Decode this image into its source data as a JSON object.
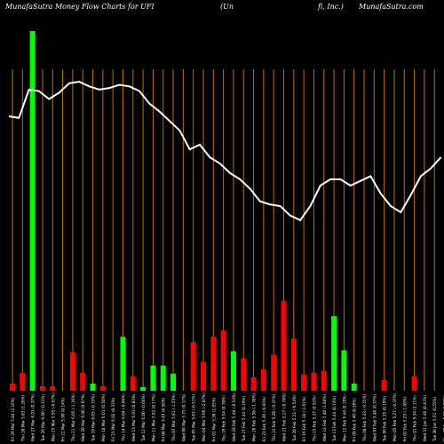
{
  "header": {
    "left": "MunafaSutra  Money Flow  Charts for UFI",
    "center_a": "(Un",
    "center_b": "fi,  Inc.)",
    "right": "MunafaSutra.com"
  },
  "chart_data": {
    "type": "bar",
    "categories": [
      "Fri 29 Mar",
      "Thu 28 Mar",
      "Wed 27 Mar",
      "Tue 26 Mar",
      "Mon 25 Mar",
      "Fri 22 Mar",
      "Thu 21 Mar",
      "Wed 20 Mar",
      "Tue 19 Mar",
      "Mon 18 Mar",
      "Fri 15 Mar",
      "Thu 14 Mar",
      "Wed 13 Mar",
      "Tue 12 Mar",
      "Mon 11 Mar",
      "Fri 08 Mar",
      "Thu 07 Mar",
      "Wed 06 Mar",
      "Tue 05 Mar",
      "Mon 04 Mar",
      "Fri 01 Mar",
      "Thu 29 Feb",
      "Wed 28 Feb",
      "Tue 27 Feb",
      "Mon 26 Feb",
      "Fri 23 Feb",
      "Thu 22 Feb",
      "Wed 21 Feb",
      "Tue 20 Feb",
      "Fri 16 Feb",
      "Thu 15 Feb",
      "Wed 14 Feb",
      "Tue 13 Feb",
      "Mon 12 Feb",
      "Fri 09 Feb",
      "Thu 08 Feb",
      "Wed 07 Feb",
      "Tue 06 Feb",
      "Mon 05 Feb",
      "Fri 02 Feb",
      "Thu 01 Feb",
      "Wed 31 Jan",
      "Tue 30 Jan",
      "Mon 29 Jan"
    ],
    "tick_labels": [
      "5.84 (2.16%)",
      "5.83 (1.28%)",
      "6.01 (0.37%)",
      "6.00 (-0.31%)",
      "5.95 (-0.67%)",
      "5.99 (0.14%)",
      "6.05 (-1.16%)",
      "6.06 (0.67%)",
      "6.03 (-0.33%)",
      "6.01 (0.50%)",
      "6.02 (0.33%)",
      "6.04 (-0.66%)",
      "6.03 (0.83%)",
      "6.00 (-0.66%)",
      "5.92 (0.17%)",
      "5.87 (0.50%)",
      "5.81 (-1.53%)",
      "5.75 (0.17%)",
      "5.63 (-0.51%)",
      "5.66 (-2.87%)",
      "5.58 (1.05%)",
      "5.54 (0.78%)",
      "5.48 (-0.54%)",
      "5.44 (0.19%)",
      "5.38 (-1.78%)",
      "5.30 (-0.93%)",
      "5.28 (-0.37%)",
      "5.27 (-0.78%)",
      "5.21 (-0.54%)",
      "5.18 (-1.01%)",
      "5.27 (0.52%)",
      "5.40 (1.84%)",
      "5.44 (0.74%)",
      "5.44 (0.19%)",
      "5.40 (0.56%)",
      "5.43 (-0.55%)",
      "5.46 (0.37%)",
      "5.35 (0.19%)",
      "5.27 (-0.37%)",
      "5.23 (-1.09%)",
      "5.34 (2.11%)",
      "5.46 (0.41%)",
      "5.51 (0.55%)",
      "5.58 (1.02%)"
    ],
    "series": [
      {
        "color": "#ff0000",
        "values": [
          8,
          20,
          0,
          5,
          5,
          0,
          43,
          20,
          0,
          5,
          0,
          8,
          16,
          0,
          0,
          0,
          0,
          0,
          54,
          32,
          60,
          67,
          0,
          36,
          15,
          24,
          40,
          100,
          58,
          18,
          20,
          22,
          0,
          0,
          0,
          0,
          0,
          12,
          0,
          0,
          16,
          0,
          0,
          0
        ]
      },
      {
        "color": "#00ff00",
        "values": [
          0,
          0,
          400,
          0,
          0,
          0,
          0,
          0,
          8,
          0,
          0,
          60,
          0,
          4,
          28,
          28,
          19,
          0,
          0,
          0,
          0,
          0,
          44,
          0,
          0,
          0,
          0,
          0,
          0,
          0,
          0,
          0,
          83,
          45,
          8,
          0,
          0,
          0,
          0,
          0,
          0,
          0,
          0,
          0
        ]
      }
    ],
    "line": {
      "color": "#ffffff",
      "values": [
        5.84,
        5.83,
        6.01,
        6.0,
        5.95,
        5.99,
        6.05,
        6.06,
        6.03,
        6.01,
        6.02,
        6.04,
        6.03,
        6.0,
        5.92,
        5.87,
        5.81,
        5.75,
        5.63,
        5.66,
        5.58,
        5.54,
        5.48,
        5.44,
        5.38,
        5.3,
        5.28,
        5.27,
        5.21,
        5.18,
        5.27,
        5.4,
        5.44,
        5.44,
        5.4,
        5.43,
        5.46,
        5.35,
        5.27,
        5.23,
        5.34,
        5.46,
        5.51,
        5.58
      ]
    },
    "grid_color": "#c07000",
    "background": "#000000"
  }
}
